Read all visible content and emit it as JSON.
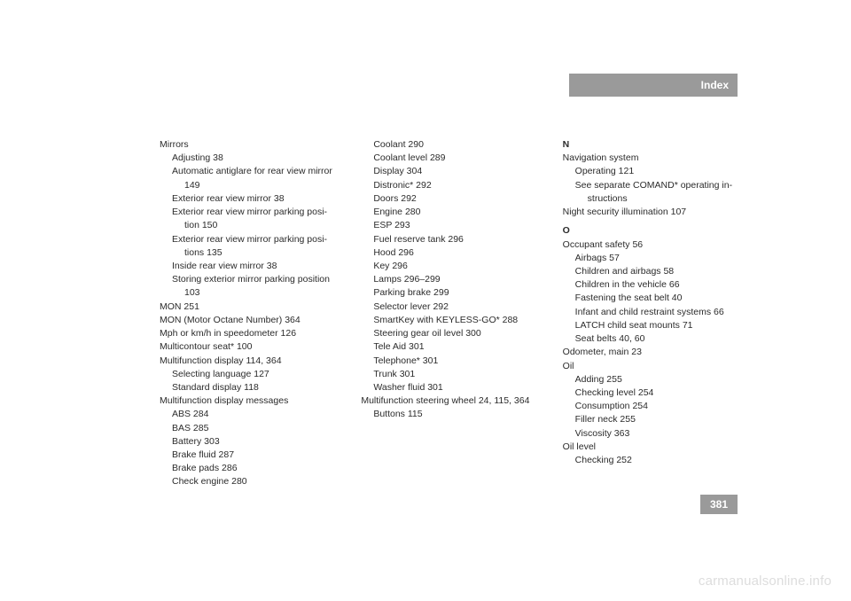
{
  "header": {
    "title": "Index"
  },
  "pageNumber": "381",
  "watermark": "carmanualsonline.info",
  "col1": [
    {
      "t": "Mirrors",
      "cls": "entry"
    },
    {
      "t": "Adjusting 38",
      "cls": "sub1"
    },
    {
      "t": "Automatic antiglare for rear view mirror",
      "cls": "sub1"
    },
    {
      "t": "149",
      "cls": "sub2"
    },
    {
      "t": "Exterior rear view mirror 38",
      "cls": "sub1"
    },
    {
      "t": "Exterior rear view mirror parking posi-",
      "cls": "sub1"
    },
    {
      "t": "tion 150",
      "cls": "sub2"
    },
    {
      "t": "Exterior rear view mirror parking posi-",
      "cls": "sub1"
    },
    {
      "t": "tions 135",
      "cls": "sub2"
    },
    {
      "t": "Inside rear view mirror 38",
      "cls": "sub1"
    },
    {
      "t": "Storing exterior mirror parking position",
      "cls": "sub1"
    },
    {
      "t": "103",
      "cls": "sub2"
    },
    {
      "t": "MON 251",
      "cls": "entry"
    },
    {
      "t": "MON (Motor Octane Number) 364",
      "cls": "entry"
    },
    {
      "t": "Mph or km/h in speedometer 126",
      "cls": "entry"
    },
    {
      "t": "Multicontour seat* 100",
      "cls": "entry"
    },
    {
      "t": "Multifunction display 114, 364",
      "cls": "entry"
    },
    {
      "t": "Selecting language 127",
      "cls": "sub1"
    },
    {
      "t": "Standard display 118",
      "cls": "sub1"
    },
    {
      "t": "Multifunction display messages",
      "cls": "entry"
    },
    {
      "t": "ABS 284",
      "cls": "sub1"
    },
    {
      "t": "BAS 285",
      "cls": "sub1"
    },
    {
      "t": "Battery 303",
      "cls": "sub1"
    },
    {
      "t": "Brake fluid 287",
      "cls": "sub1"
    },
    {
      "t": "Brake pads 286",
      "cls": "sub1"
    },
    {
      "t": "Check engine 280",
      "cls": "sub1"
    }
  ],
  "col2": [
    {
      "t": "Coolant 290",
      "cls": "sub1"
    },
    {
      "t": "Coolant level 289",
      "cls": "sub1"
    },
    {
      "t": "Display 304",
      "cls": "sub1"
    },
    {
      "t": "Distronic* 292",
      "cls": "sub1"
    },
    {
      "t": "Doors 292",
      "cls": "sub1"
    },
    {
      "t": "Engine 280",
      "cls": "sub1"
    },
    {
      "t": "ESP 293",
      "cls": "sub1"
    },
    {
      "t": "Fuel reserve tank 296",
      "cls": "sub1"
    },
    {
      "t": "Hood 296",
      "cls": "sub1"
    },
    {
      "t": "Key 296",
      "cls": "sub1"
    },
    {
      "t": "Lamps 296–299",
      "cls": "sub1"
    },
    {
      "t": "Parking brake 299",
      "cls": "sub1"
    },
    {
      "t": "Selector lever 292",
      "cls": "sub1"
    },
    {
      "t": "SmartKey with KEYLESS-GO* 288",
      "cls": "sub1"
    },
    {
      "t": "Steering gear oil level 300",
      "cls": "sub1"
    },
    {
      "t": "Tele Aid 301",
      "cls": "sub1"
    },
    {
      "t": "Telephone* 301",
      "cls": "sub1"
    },
    {
      "t": "Trunk 301",
      "cls": "sub1"
    },
    {
      "t": "Washer fluid 301",
      "cls": "sub1"
    },
    {
      "t": "Multifunction steering wheel 24, 115, 364",
      "cls": "entry"
    },
    {
      "t": "Buttons 115",
      "cls": "sub1"
    }
  ],
  "col3": [
    {
      "t": "N",
      "cls": "sect-head first"
    },
    {
      "t": "Navigation system",
      "cls": "entry"
    },
    {
      "t": "Operating 121",
      "cls": "sub1"
    },
    {
      "t": "See separate COMAND* operating in-",
      "cls": "sub1"
    },
    {
      "t": "structions",
      "cls": "sub2"
    },
    {
      "t": "Night security illumination 107",
      "cls": "entry"
    },
    {
      "t": "O",
      "cls": "sect-head"
    },
    {
      "t": "Occupant safety 56",
      "cls": "entry"
    },
    {
      "t": "Airbags 57",
      "cls": "sub1"
    },
    {
      "t": "Children and airbags 58",
      "cls": "sub1"
    },
    {
      "t": "Children in the vehicle 66",
      "cls": "sub1"
    },
    {
      "t": "Fastening the seat belt 40",
      "cls": "sub1"
    },
    {
      "t": "Infant and child restraint systems 66",
      "cls": "sub1"
    },
    {
      "t": "LATCH child seat mounts 71",
      "cls": "sub1"
    },
    {
      "t": "Seat belts 40, 60",
      "cls": "sub1"
    },
    {
      "t": "Odometer, main 23",
      "cls": "entry"
    },
    {
      "t": "Oil",
      "cls": "entry"
    },
    {
      "t": "Adding 255",
      "cls": "sub1"
    },
    {
      "t": "Checking level 254",
      "cls": "sub1"
    },
    {
      "t": "Consumption 254",
      "cls": "sub1"
    },
    {
      "t": "Filler neck 255",
      "cls": "sub1"
    },
    {
      "t": "Viscosity 363",
      "cls": "sub1"
    },
    {
      "t": "Oil level",
      "cls": "entry"
    },
    {
      "t": "Checking 252",
      "cls": "sub1"
    }
  ]
}
